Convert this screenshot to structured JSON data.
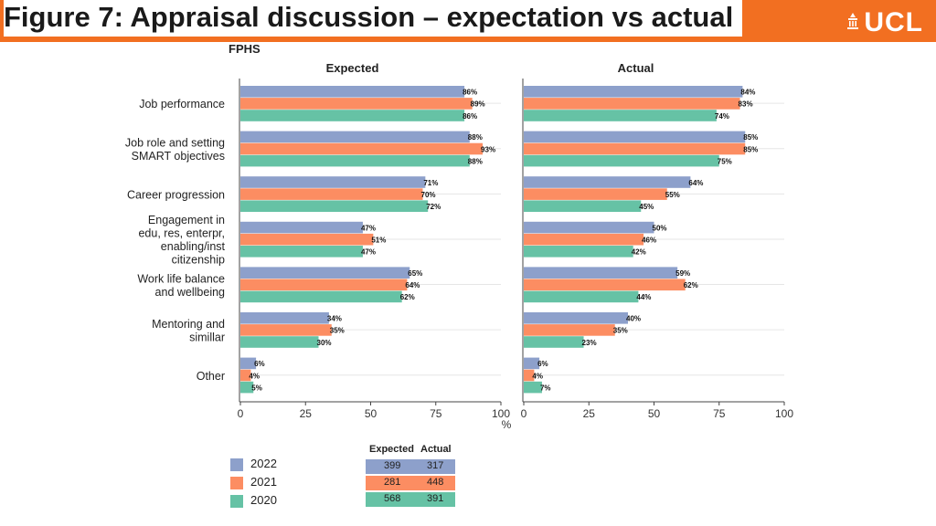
{
  "header": {
    "title": "Figure 7: Appraisal discussion – expectation vs actual",
    "logo": "UCL",
    "accent_color": "#f26f21"
  },
  "chart_data": {
    "type": "bar",
    "orientation": "horizontal",
    "supertitle": "FPHS",
    "panels": [
      {
        "title": "Expected",
        "series": [
          {
            "name": "2022",
            "values": [
              86,
              88,
              71,
              47,
              65,
              34,
              6
            ]
          },
          {
            "name": "2021",
            "values": [
              89,
              93,
              70,
              51,
              64,
              35,
              4
            ]
          },
          {
            "name": "2020",
            "values": [
              86,
              88,
              72,
              47,
              62,
              30,
              5
            ]
          }
        ]
      },
      {
        "title": "Actual",
        "series": [
          {
            "name": "2022",
            "values": [
              84,
              85,
              64,
              50,
              59,
              40,
              6
            ]
          },
          {
            "name": "2021",
            "values": [
              83,
              85,
              55,
              46,
              62,
              35,
              4
            ]
          },
          {
            "name": "2020",
            "values": [
              74,
              75,
              45,
              42,
              44,
              23,
              7
            ]
          }
        ]
      }
    ],
    "categories": [
      [
        "Job performance"
      ],
      [
        "Job role and setting",
        "SMART objectives"
      ],
      [
        "Career progression"
      ],
      [
        "Engagement in",
        "edu, res, enterpr,",
        "enabling/inst",
        "citizenship"
      ],
      [
        "Work life balance",
        "and wellbeing"
      ],
      [
        "Mentoring and",
        "simillar"
      ],
      [
        "Other"
      ]
    ],
    "xlim": [
      0,
      100
    ],
    "xticks": [
      0,
      25,
      50,
      75,
      100
    ],
    "xlabel": "%",
    "colors": {
      "2022": "#8da0cb",
      "2021": "#fc8d62",
      "2020": "#66c2a5"
    },
    "legend_position": "bottom-left"
  },
  "legend": {
    "items": [
      {
        "label": "2022",
        "color": "#8da0cb"
      },
      {
        "label": "2021",
        "color": "#fc8d62"
      },
      {
        "label": "2020",
        "color": "#66c2a5"
      }
    ]
  },
  "n_table": {
    "headers": [
      "Expected",
      "Actual"
    ],
    "rows": [
      {
        "year": "2022",
        "expected": "399",
        "actual": "317",
        "color": "#8da0cb"
      },
      {
        "year": "2021",
        "expected": "281",
        "actual": "448",
        "color": "#fc8d62"
      },
      {
        "year": "2020",
        "expected": "568",
        "actual": "391",
        "color": "#66c2a5"
      }
    ]
  }
}
